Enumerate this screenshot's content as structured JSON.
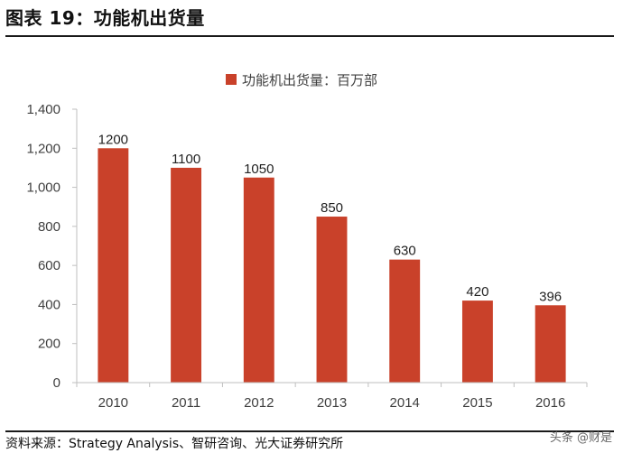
{
  "figure": {
    "title": "图表 19：功能机出货量",
    "source": "资料来源：Strategy Analysis、智研咨询、光大证券研究所",
    "watermark": "头条 @财是"
  },
  "chart_data": {
    "type": "bar",
    "categories": [
      "2010",
      "2011",
      "2012",
      "2013",
      "2014",
      "2015",
      "2016"
    ],
    "series": [
      {
        "name": "功能机出货量：百万部",
        "values": [
          1200,
          1100,
          1050,
          850,
          630,
          420,
          396
        ]
      }
    ],
    "data_labels": [
      "1200",
      "1100",
      "1050",
      "850",
      "630",
      "420",
      "396"
    ],
    "ylim": [
      0,
      1400
    ],
    "yticks": [
      0,
      200,
      400,
      600,
      800,
      1000,
      1200,
      1400
    ],
    "ytick_labels": [
      "0",
      "200",
      "400",
      "600",
      "800",
      "1,000",
      "1,200",
      "1,400"
    ],
    "legend_position": "top-center",
    "grid": false,
    "colors": {
      "bar": "#C9412A",
      "axis": "#BFBFBF"
    }
  }
}
